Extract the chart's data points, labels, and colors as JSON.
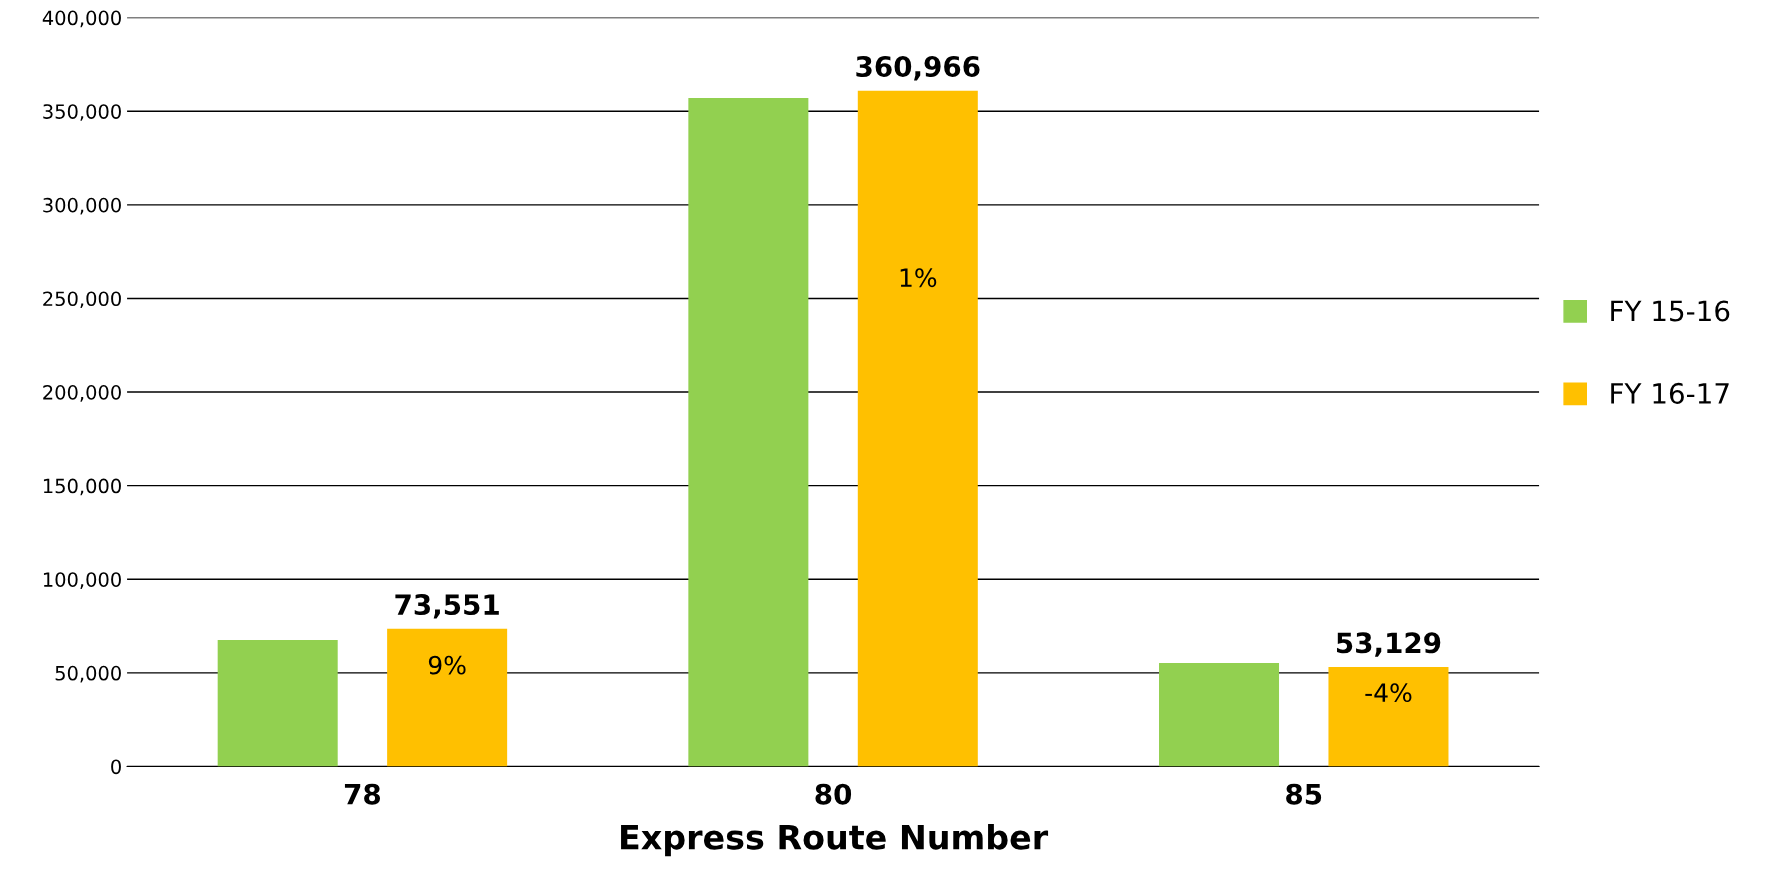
{
  "chart_data": {
    "type": "bar",
    "xlabel": "Express Route Number",
    "categories": [
      "78",
      "80",
      "85"
    ],
    "series": [
      {
        "name": "FY 15-16",
        "color": "#92d050",
        "values": [
          67500,
          357000,
          55300
        ]
      },
      {
        "name": "FY 16-17",
        "color": "#ffc000",
        "values": [
          73551,
          360966,
          53129
        ],
        "value_labels": [
          "73,551",
          "360,966",
          "53,129"
        ]
      }
    ],
    "annotations": [
      "9%",
      "1%",
      "-4%"
    ],
    "ylim": [
      0,
      400000
    ],
    "yticks": [
      {
        "value": 0,
        "label": "0"
      },
      {
        "value": 50000,
        "label": "50,000"
      },
      {
        "value": 100000,
        "label": "100,000"
      },
      {
        "value": 150000,
        "label": "150,000"
      },
      {
        "value": 200000,
        "label": "200,000"
      },
      {
        "value": 250000,
        "label": "250,000"
      },
      {
        "value": 300000,
        "label": "300,000"
      },
      {
        "value": 350000,
        "label": "350,000"
      },
      {
        "value": 400000,
        "label": "400,000"
      }
    ],
    "grid": "y",
    "legend": "right"
  }
}
